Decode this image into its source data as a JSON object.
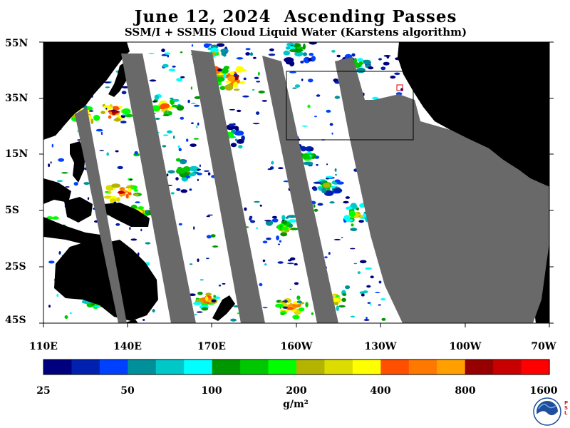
{
  "header": {
    "title": "June 12, 2024  Ascending Passes",
    "subtitle": "SSM/I + SSMIS Cloud Liquid Water (Karstens algorithm)"
  },
  "map": {
    "lat_labels": [
      "55N",
      "35N",
      "15N",
      "5S",
      "25S",
      "45S"
    ],
    "lon_labels": [
      "110E",
      "140E",
      "170E",
      "160W",
      "130W",
      "100W",
      "70W"
    ],
    "colors": {
      "ocean_clear": "#ffffff",
      "land": "#000000",
      "no_data": "#696969"
    }
  },
  "colorbar": {
    "labels": [
      "25",
      "50",
      "100",
      "200",
      "400",
      "800",
      "1600"
    ],
    "units": "g/m²",
    "colors": [
      "#00007f",
      "#0020b0",
      "#0040ff",
      "#00909a",
      "#00c8c8",
      "#00ffff",
      "#009600",
      "#00c800",
      "#00ff00",
      "#b4b400",
      "#dcdc00",
      "#ffff00",
      "#ff5000",
      "#ff7800",
      "#ffa000",
      "#960000",
      "#c80000",
      "#ff0000"
    ]
  },
  "logo": {
    "name": "NOAA",
    "side_text": "PSL"
  }
}
